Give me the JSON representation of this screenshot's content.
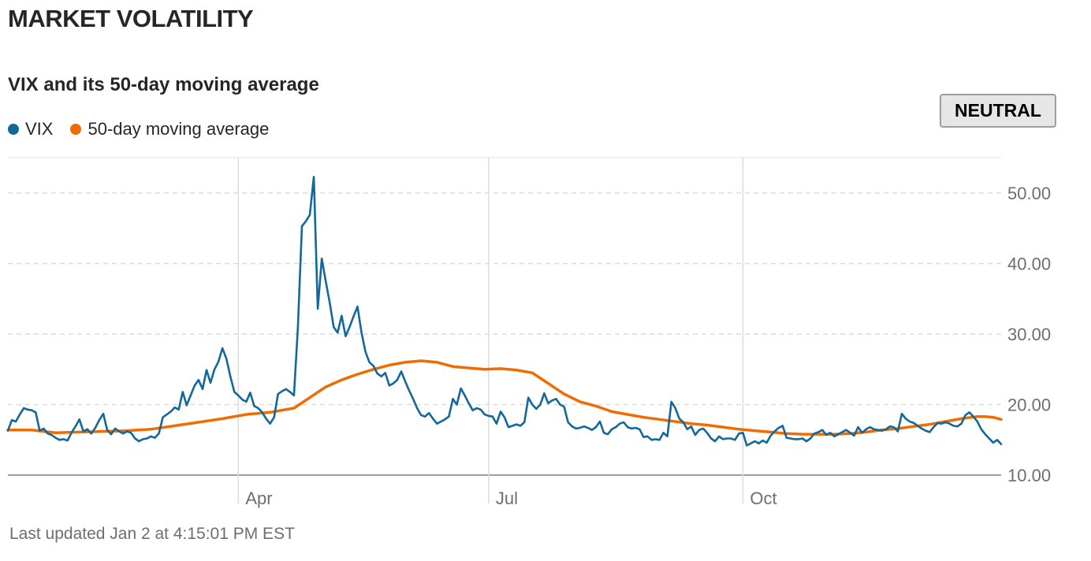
{
  "header": {
    "title": "MARKET VOLATILITY",
    "subtitle": "VIX and its 50-day moving average",
    "badge": "NEUTRAL"
  },
  "footer": {
    "text": "Last updated Jan 2 at 4:15:01 PM EST"
  },
  "colors": {
    "vix": "#136899",
    "ma": "#f06c00",
    "grid": "#dcdcdc",
    "axis": "#9e9e9e"
  },
  "chart_data": {
    "type": "line",
    "title": "VIX and its 50-day moving average",
    "xlabel": "",
    "ylabel": "",
    "x_range": [
      0,
      250
    ],
    "ylim": [
      10,
      55
    ],
    "y_ticks": [
      {
        "value": 10,
        "label": "10.00"
      },
      {
        "value": 20,
        "label": "20.00"
      },
      {
        "value": 30,
        "label": "30.00"
      },
      {
        "value": 40,
        "label": "40.00"
      },
      {
        "value": 50,
        "label": "50.00"
      }
    ],
    "x_ticks": [
      {
        "value": 58,
        "label": "Apr"
      },
      {
        "value": 121,
        "label": "Jul"
      },
      {
        "value": 185,
        "label": "Oct"
      }
    ],
    "legend": [
      "VIX",
      "50-day moving average"
    ],
    "series": [
      {
        "name": "VIX",
        "color": "#136899",
        "points": [
          [
            0,
            16.3
          ],
          [
            1,
            17.8
          ],
          [
            2,
            17.6
          ],
          [
            3,
            18.6
          ],
          [
            4,
            19.5
          ],
          [
            5,
            19.3
          ],
          [
            6,
            19.2
          ],
          [
            7,
            18.9
          ],
          [
            8,
            16.3
          ],
          [
            9,
            16.6
          ],
          [
            10,
            15.9
          ],
          [
            11,
            15.7
          ],
          [
            12,
            15.3
          ],
          [
            13,
            15.0
          ],
          [
            14,
            15.1
          ],
          [
            15,
            14.9
          ],
          [
            16,
            16.0
          ],
          [
            17,
            16.9
          ],
          [
            18,
            17.9
          ],
          [
            19,
            16.2
          ],
          [
            20,
            16.5
          ],
          [
            21,
            15.9
          ],
          [
            22,
            16.7
          ],
          [
            23,
            17.8
          ],
          [
            24,
            18.7
          ],
          [
            25,
            16.4
          ],
          [
            26,
            15.8
          ],
          [
            27,
            16.6
          ],
          [
            28,
            16.2
          ],
          [
            29,
            15.9
          ],
          [
            30,
            16.2
          ],
          [
            31,
            16.0
          ],
          [
            32,
            15.2
          ],
          [
            33,
            14.8
          ],
          [
            34,
            15.1
          ],
          [
            35,
            15.2
          ],
          [
            36,
            15.5
          ],
          [
            37,
            15.3
          ],
          [
            38,
            15.9
          ],
          [
            39,
            18.2
          ],
          [
            40,
            18.6
          ],
          [
            41,
            19.0
          ],
          [
            42,
            19.6
          ],
          [
            43,
            19.3
          ],
          [
            44,
            21.8
          ],
          [
            45,
            19.9
          ],
          [
            46,
            21.3
          ],
          [
            47,
            22.7
          ],
          [
            48,
            23.5
          ],
          [
            49,
            22.2
          ],
          [
            50,
            24.9
          ],
          [
            51,
            23.1
          ],
          [
            52,
            25.0
          ],
          [
            53,
            26.1
          ],
          [
            54,
            28.0
          ],
          [
            55,
            26.5
          ],
          [
            56,
            24.0
          ],
          [
            57,
            21.8
          ],
          [
            58,
            21.3
          ],
          [
            59,
            20.7
          ],
          [
            60,
            20.4
          ],
          [
            61,
            21.7
          ],
          [
            62,
            19.8
          ],
          [
            63,
            19.5
          ],
          [
            64,
            18.9
          ],
          [
            65,
            18.0
          ],
          [
            66,
            17.3
          ],
          [
            67,
            18.2
          ],
          [
            68,
            21.5
          ],
          [
            69,
            21.9
          ],
          [
            70,
            22.2
          ],
          [
            71,
            21.8
          ],
          [
            72,
            21.3
          ],
          [
            73,
            31.0
          ],
          [
            74,
            45.3
          ],
          [
            75,
            46.0
          ],
          [
            76,
            46.9
          ],
          [
            77,
            52.3
          ],
          [
            78,
            33.6
          ],
          [
            79,
            40.7
          ],
          [
            80,
            37.5
          ],
          [
            81,
            34.5
          ],
          [
            82,
            31.0
          ],
          [
            83,
            30.2
          ],
          [
            84,
            32.6
          ],
          [
            85,
            29.7
          ],
          [
            86,
            31.0
          ],
          [
            87,
            32.5
          ],
          [
            88,
            33.9
          ],
          [
            89,
            30.2
          ],
          [
            90,
            27.5
          ],
          [
            91,
            26.0
          ],
          [
            92,
            25.5
          ],
          [
            93,
            24.4
          ],
          [
            94,
            24.0
          ],
          [
            95,
            24.5
          ],
          [
            96,
            22.7
          ],
          [
            97,
            23.0
          ],
          [
            98,
            23.5
          ],
          [
            99,
            24.7
          ],
          [
            100,
            23.3
          ],
          [
            101,
            22.0
          ],
          [
            102,
            20.8
          ],
          [
            103,
            19.5
          ],
          [
            104,
            18.5
          ],
          [
            105,
            18.3
          ],
          [
            106,
            18.8
          ],
          [
            107,
            18.0
          ],
          [
            108,
            17.3
          ],
          [
            109,
            17.6
          ],
          [
            110,
            17.9
          ],
          [
            111,
            18.3
          ],
          [
            112,
            20.8
          ],
          [
            113,
            20.0
          ],
          [
            114,
            22.3
          ],
          [
            115,
            21.3
          ],
          [
            116,
            20.2
          ],
          [
            117,
            19.2
          ],
          [
            118,
            19.5
          ],
          [
            119,
            19.3
          ],
          [
            120,
            18.6
          ],
          [
            121,
            18.4
          ],
          [
            122,
            18.3
          ],
          [
            123,
            17.3
          ],
          [
            124,
            19.0
          ],
          [
            125,
            18.2
          ],
          [
            126,
            16.8
          ],
          [
            127,
            17.0
          ],
          [
            128,
            17.2
          ],
          [
            129,
            17.0
          ],
          [
            130,
            17.5
          ],
          [
            131,
            21.0
          ],
          [
            132,
            20.0
          ],
          [
            133,
            19.4
          ],
          [
            134,
            20.0
          ],
          [
            135,
            21.6
          ],
          [
            136,
            20.2
          ],
          [
            137,
            20.6
          ],
          [
            138,
            20.8
          ],
          [
            139,
            20.0
          ],
          [
            140,
            19.7
          ],
          [
            141,
            17.5
          ],
          [
            142,
            16.9
          ],
          [
            143,
            16.6
          ],
          [
            144,
            16.7
          ],
          [
            145,
            16.9
          ],
          [
            146,
            16.7
          ],
          [
            147,
            16.4
          ],
          [
            148,
            16.8
          ],
          [
            149,
            17.6
          ],
          [
            150,
            16.0
          ],
          [
            151,
            15.8
          ],
          [
            152,
            16.5
          ],
          [
            153,
            16.8
          ],
          [
            154,
            17.3
          ],
          [
            155,
            17.5
          ],
          [
            156,
            16.8
          ],
          [
            157,
            16.6
          ],
          [
            158,
            16.7
          ],
          [
            159,
            16.5
          ],
          [
            160,
            15.4
          ],
          [
            161,
            15.5
          ],
          [
            162,
            15.0
          ],
          [
            163,
            15.1
          ],
          [
            164,
            15.0
          ],
          [
            165,
            16.0
          ],
          [
            166,
            15.5
          ],
          [
            167,
            20.4
          ],
          [
            168,
            19.5
          ],
          [
            169,
            18.0
          ],
          [
            170,
            17.5
          ],
          [
            171,
            16.5
          ],
          [
            172,
            16.9
          ],
          [
            173,
            15.7
          ],
          [
            174,
            16.4
          ],
          [
            175,
            16.6
          ],
          [
            176,
            16.0
          ],
          [
            177,
            15.2
          ],
          [
            178,
            14.8
          ],
          [
            179,
            15.5
          ],
          [
            180,
            15.1
          ],
          [
            181,
            15.2
          ],
          [
            182,
            15.2
          ],
          [
            183,
            15.0
          ],
          [
            184,
            15.9
          ],
          [
            185,
            16.0
          ],
          [
            186,
            14.2
          ],
          [
            187,
            14.5
          ],
          [
            188,
            14.8
          ],
          [
            189,
            14.5
          ],
          [
            190,
            14.9
          ],
          [
            191,
            14.6
          ],
          [
            192,
            15.6
          ],
          [
            193,
            16.2
          ],
          [
            194,
            16.7
          ],
          [
            195,
            17.0
          ],
          [
            196,
            15.3
          ],
          [
            197,
            15.2
          ],
          [
            198,
            15.1
          ],
          [
            199,
            15.1
          ],
          [
            200,
            15.2
          ],
          [
            201,
            14.8
          ],
          [
            202,
            15.2
          ],
          [
            203,
            15.9
          ],
          [
            204,
            16.1
          ],
          [
            205,
            16.4
          ],
          [
            206,
            15.7
          ],
          [
            207,
            16.0
          ],
          [
            208,
            15.5
          ],
          [
            209,
            15.8
          ],
          [
            210,
            16.1
          ],
          [
            211,
            16.4
          ],
          [
            212,
            16.0
          ],
          [
            213,
            15.6
          ],
          [
            214,
            16.8
          ],
          [
            215,
            16.0
          ],
          [
            216,
            16.5
          ],
          [
            217,
            16.8
          ],
          [
            218,
            16.5
          ],
          [
            219,
            16.4
          ],
          [
            220,
            16.3
          ],
          [
            221,
            16.5
          ],
          [
            222,
            16.9
          ],
          [
            223,
            16.8
          ],
          [
            224,
            16.2
          ],
          [
            225,
            18.7
          ],
          [
            226,
            18.0
          ],
          [
            227,
            17.6
          ],
          [
            228,
            17.4
          ],
          [
            229,
            17.0
          ],
          [
            230,
            16.6
          ],
          [
            231,
            16.3
          ],
          [
            232,
            16.1
          ],
          [
            233,
            16.8
          ],
          [
            234,
            17.4
          ],
          [
            235,
            17.3
          ],
          [
            236,
            17.5
          ],
          [
            237,
            17.3
          ],
          [
            238,
            17.0
          ],
          [
            239,
            16.9
          ],
          [
            240,
            17.3
          ],
          [
            241,
            18.5
          ],
          [
            242,
            18.9
          ],
          [
            243,
            18.3
          ],
          [
            244,
            17.6
          ],
          [
            245,
            16.5
          ],
          [
            246,
            15.8
          ],
          [
            247,
            15.2
          ],
          [
            248,
            14.6
          ],
          [
            249,
            15.0
          ],
          [
            250,
            14.4
          ]
        ]
      },
      {
        "name": "50-day moving average",
        "color": "#f06c00",
        "points": [
          [
            0,
            16.4
          ],
          [
            6,
            16.4
          ],
          [
            12,
            16.0
          ],
          [
            18,
            16.1
          ],
          [
            24,
            16.2
          ],
          [
            30,
            16.3
          ],
          [
            36,
            16.5
          ],
          [
            42,
            17.0
          ],
          [
            48,
            17.5
          ],
          [
            54,
            18.0
          ],
          [
            60,
            18.6
          ],
          [
            66,
            18.9
          ],
          [
            72,
            19.5
          ],
          [
            76,
            21.0
          ],
          [
            80,
            22.5
          ],
          [
            84,
            23.5
          ],
          [
            88,
            24.3
          ],
          [
            92,
            25.0
          ],
          [
            96,
            25.6
          ],
          [
            100,
            26.0
          ],
          [
            104,
            26.2
          ],
          [
            108,
            26.0
          ],
          [
            112,
            25.4
          ],
          [
            116,
            25.2
          ],
          [
            120,
            25.0
          ],
          [
            124,
            25.1
          ],
          [
            128,
            24.9
          ],
          [
            132,
            24.5
          ],
          [
            136,
            23.0
          ],
          [
            140,
            21.5
          ],
          [
            144,
            20.4
          ],
          [
            148,
            19.8
          ],
          [
            152,
            19.0
          ],
          [
            156,
            18.6
          ],
          [
            160,
            18.2
          ],
          [
            164,
            17.9
          ],
          [
            168,
            17.6
          ],
          [
            172,
            17.3
          ],
          [
            176,
            17.1
          ],
          [
            180,
            16.8
          ],
          [
            184,
            16.5
          ],
          [
            188,
            16.3
          ],
          [
            192,
            16.1
          ],
          [
            196,
            15.9
          ],
          [
            200,
            15.8
          ],
          [
            204,
            15.8
          ],
          [
            208,
            15.8
          ],
          [
            212,
            15.9
          ],
          [
            216,
            16.1
          ],
          [
            220,
            16.4
          ],
          [
            224,
            16.6
          ],
          [
            228,
            16.9
          ],
          [
            232,
            17.2
          ],
          [
            236,
            17.6
          ],
          [
            240,
            18.0
          ],
          [
            244,
            18.3
          ],
          [
            246,
            18.3
          ],
          [
            248,
            18.2
          ],
          [
            250,
            17.9
          ]
        ]
      }
    ]
  }
}
